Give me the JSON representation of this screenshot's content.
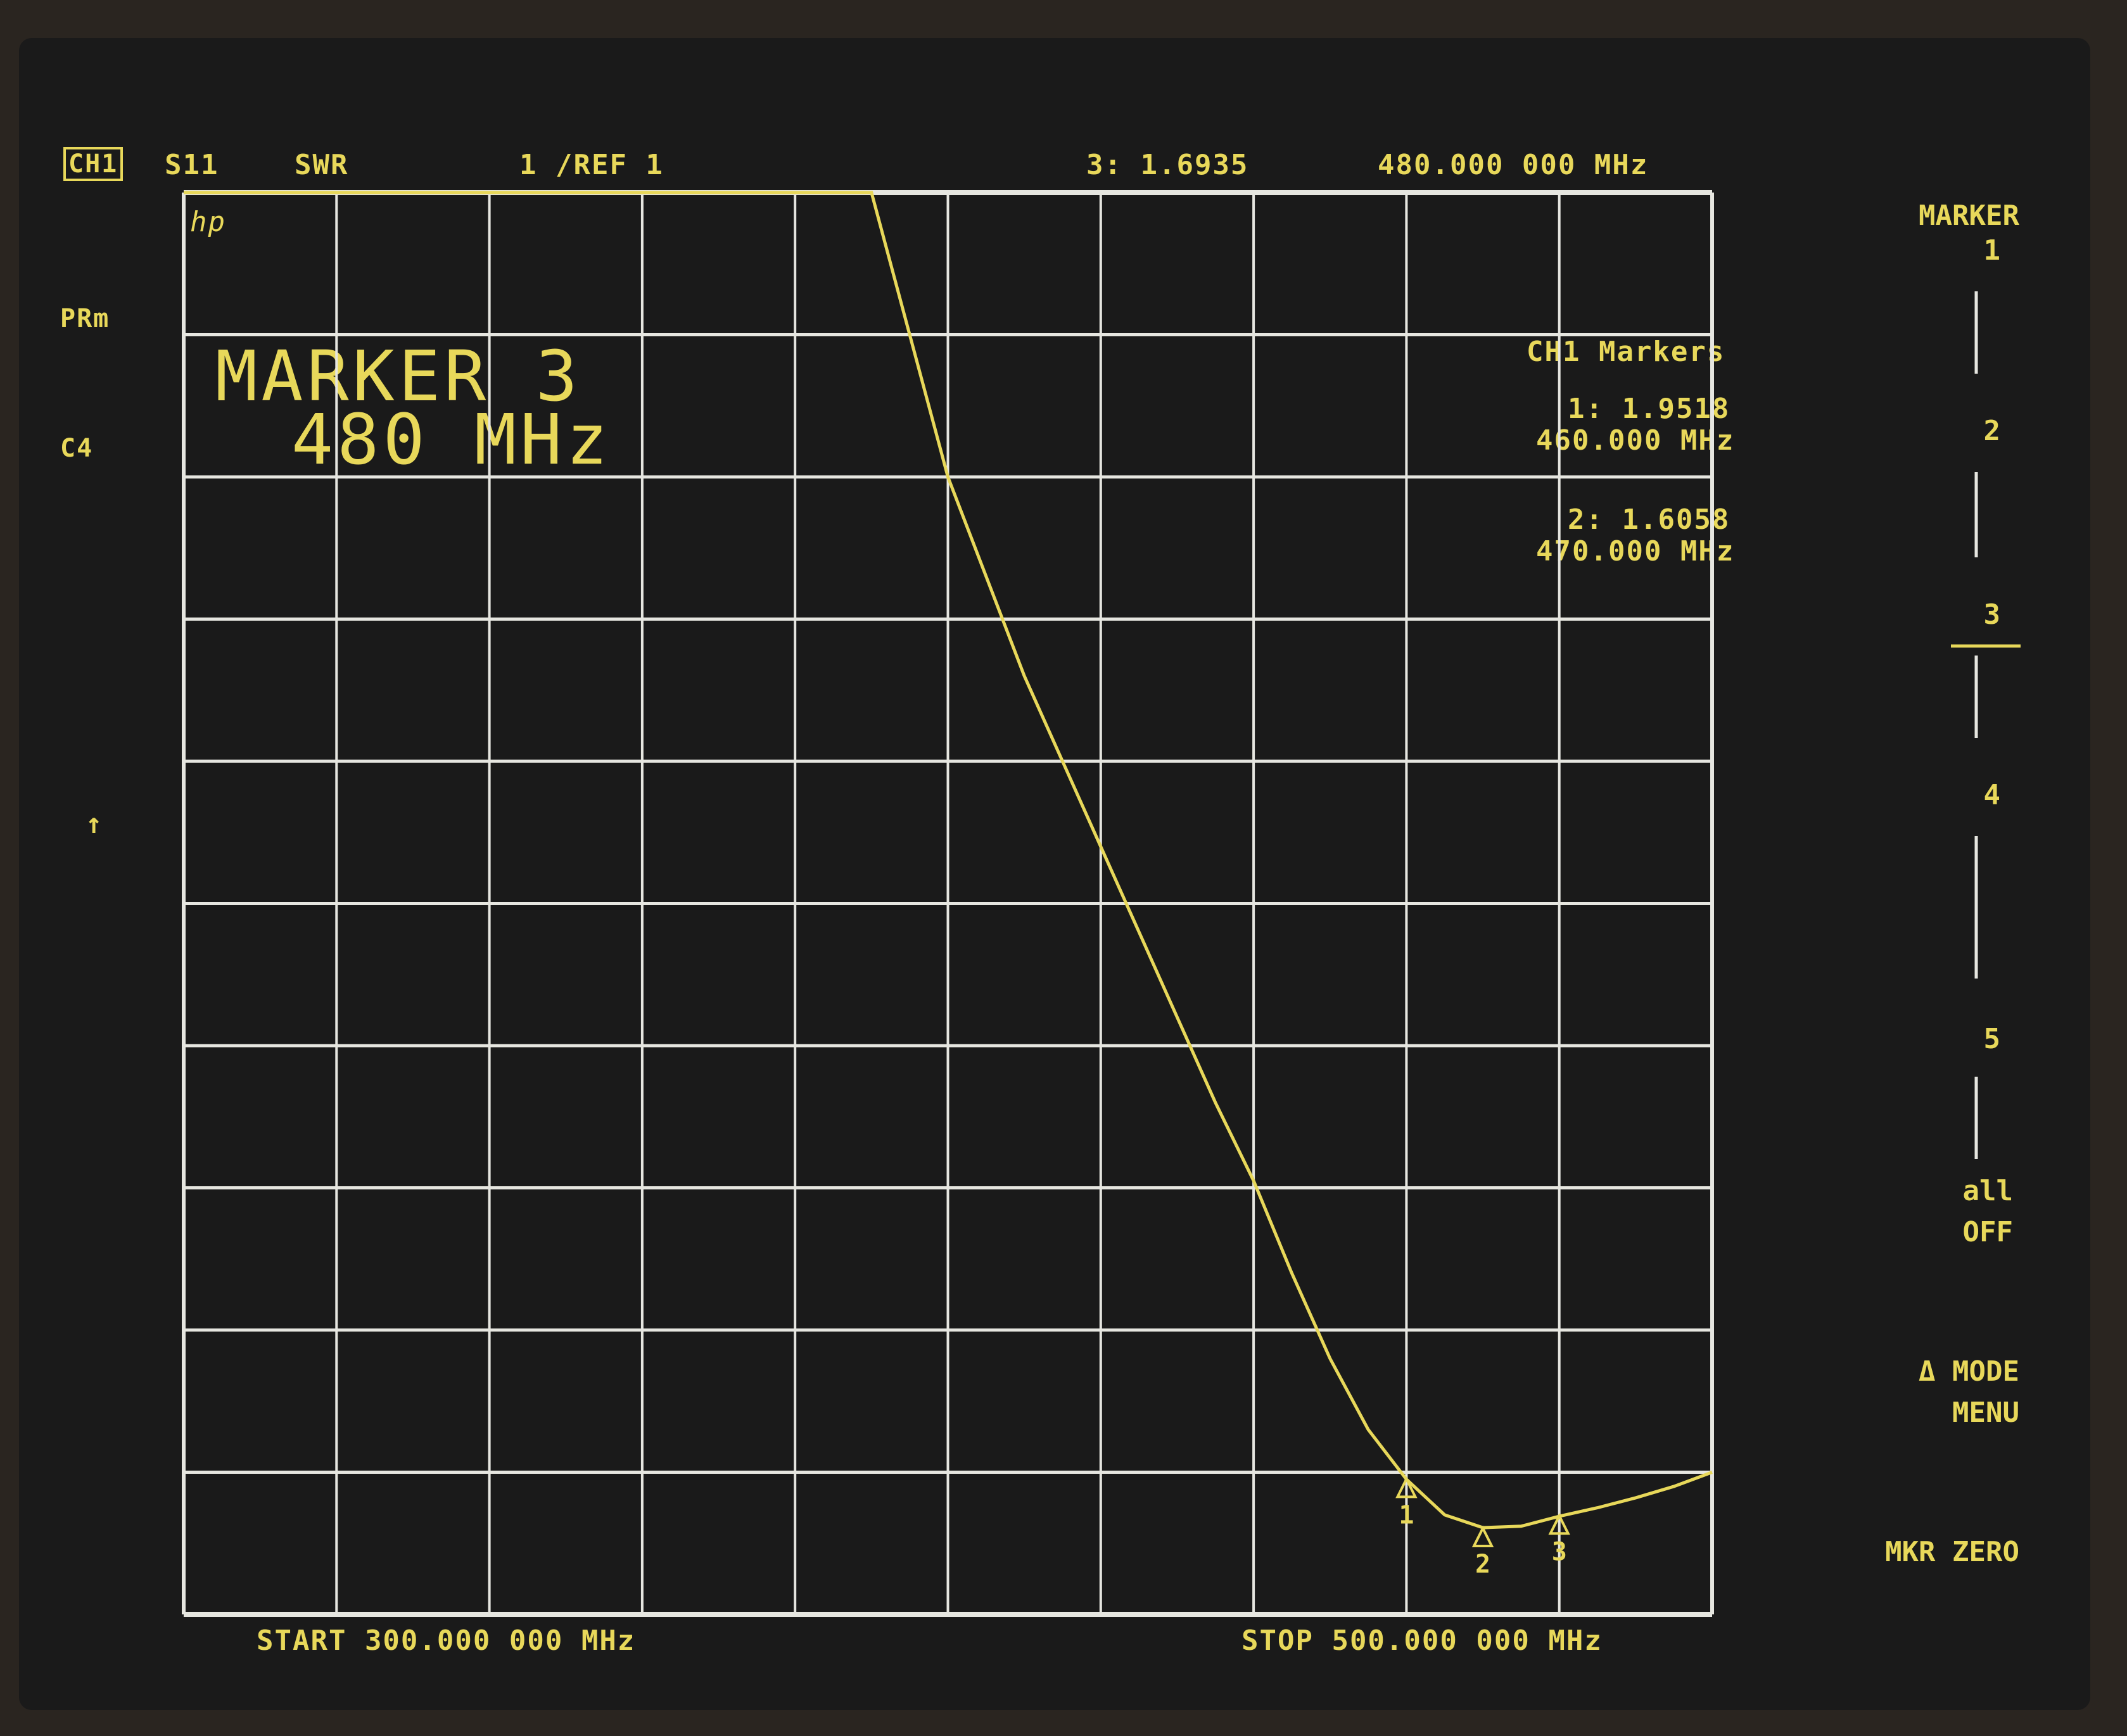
{
  "header": {
    "channel": "CH1",
    "parameter": "S11",
    "format": "SWR",
    "scale": "1 /REF 1",
    "active_marker_readout": "3: 1.6935",
    "active_marker_freq": "480.000 000 MHz"
  },
  "left_annotations": {
    "logo": "hp",
    "prm": "PRm",
    "c4": "C4",
    "arrow": "↑"
  },
  "big_text": {
    "line1": "MARKER 3",
    "line2": "480 MHz"
  },
  "marker_list": {
    "title": "CH1 Markers",
    "items": [
      {
        "value": "1: 1.9518",
        "freq": "460.000 MHz"
      },
      {
        "value": "2: 1.6058",
        "freq": "470.000 MHz"
      }
    ]
  },
  "footer": {
    "start": "START 300.000 000 MHz",
    "stop": "STOP 500.000 000 MHz"
  },
  "softkeys": {
    "title": "MARKER",
    "keys": [
      "1",
      "2",
      "3",
      "4",
      "5"
    ],
    "all_off_1": "all",
    "all_off_2": "OFF",
    "delta_1": "Δ MODE",
    "delta_2": "MENU",
    "mkr_zero": "MKR ZERO"
  },
  "colors": {
    "trace": "#e8d85a",
    "grid": "#e6e6e0",
    "background": "#1a1a1a"
  },
  "chart_data": {
    "type": "line",
    "xlabel": "",
    "ylabel": "",
    "xlim": [
      300,
      500
    ],
    "ylim": [
      1,
      11
    ],
    "x_divisions": 10,
    "y_divisions": 10,
    "grid": true,
    "series": [
      {
        "x": [
          300,
          390,
          395,
          400,
          405,
          410,
          415,
          420,
          425,
          430,
          435,
          440,
          445,
          450,
          455,
          460,
          465,
          470,
          475,
          480,
          485,
          490,
          495,
          500
        ],
        "y": [
          11,
          11,
          10,
          9,
          8.3,
          7.6,
          7,
          6.4,
          5.8,
          5.2,
          4.6,
          4.05,
          3.4,
          2.8,
          2.3,
          1.95,
          1.7,
          1.61,
          1.62,
          1.69,
          1.75,
          1.82,
          1.9,
          2.0
        ]
      }
    ],
    "markers": [
      {
        "label": "1",
        "x": 460,
        "y": 1.9518
      },
      {
        "label": "2",
        "x": 470,
        "y": 1.6058
      },
      {
        "label": "3",
        "x": 480,
        "y": 1.6935
      }
    ]
  }
}
